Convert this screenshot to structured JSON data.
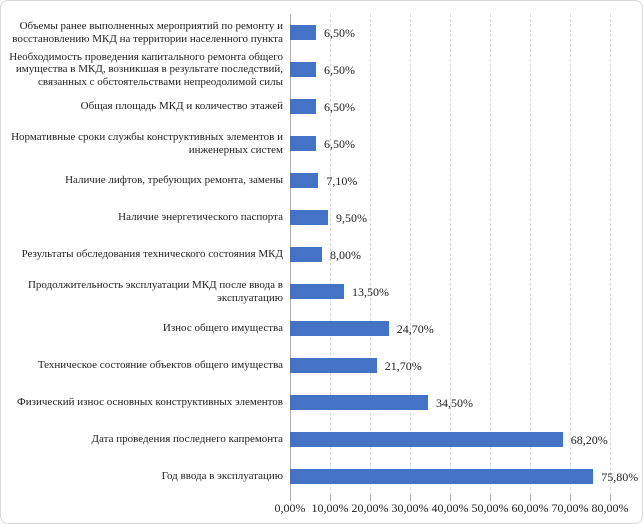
{
  "chart_data": {
    "type": "bar",
    "orientation": "horizontal",
    "title": "",
    "xlabel": "",
    "ylabel": "",
    "xlim": [
      0,
      80
    ],
    "x_tick_step": 10,
    "grid": "vertical-dashed",
    "legend": "none",
    "categories": [
      "Объемы ранее выполненных мероприятий по ремонту и восстановлению МКД на территории населенного пункта",
      "Необходимость проведения капитального ремонта общего имущества в МКД, возникшая в результате последствий, связанных с обстоятельствами непреодолимой силы",
      "Общая площадь МКД и количество этажей",
      "Нормативные сроки службы конструктивных элементов и инженерных систем",
      "Наличие лифтов, требующих ремонта, замены",
      "Наличие энергетического паспорта",
      "Результаты обследования технического состояния МКД",
      "Продолжительность эксплуатации МКД после ввода в эксплуатацию",
      "Износ общего имущества",
      "Техническое состояние объектов общего имущества",
      "Физический износ основных конструктивных элементов",
      "Дата проведения последнего капремонта",
      "Год ввода в эксплуатацию"
    ],
    "values": [
      6.5,
      6.5,
      6.5,
      6.5,
      7.1,
      9.5,
      8.0,
      13.5,
      24.7,
      21.7,
      34.5,
      68.2,
      75.8
    ],
    "value_labels": [
      "6,50%",
      "6,50%",
      "6,50%",
      "6,50%",
      "7,10%",
      "9,50%",
      "8,00%",
      "13,50%",
      "24,70%",
      "21,70%",
      "34,50%",
      "68,20%",
      "75,80%"
    ],
    "x_ticks": [
      "0,00%",
      "10,00%",
      "20,00%",
      "30,00%",
      "40,00%",
      "50,00%",
      "60,00%",
      "70,00%",
      "80,00%"
    ]
  },
  "colors": {
    "bar": "#4472C4",
    "gridline": "#D9D9D9",
    "axis": "#B0B0B0",
    "text": "#1F1F1F",
    "border": "#D9D9D9",
    "background": "#FFFFFF"
  }
}
